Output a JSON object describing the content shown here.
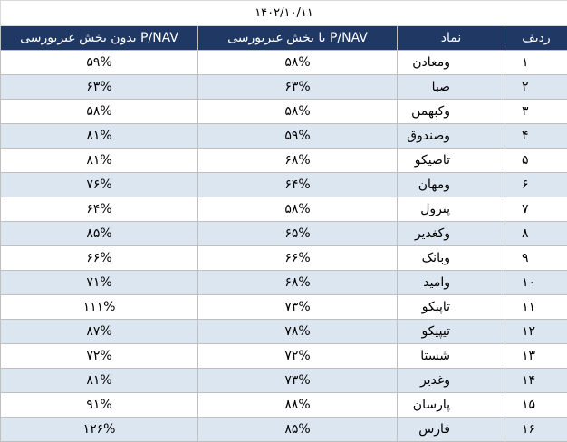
{
  "table": {
    "date": "۱۴۰۲/۱۰/۱۱",
    "headers": [
      "ردیف",
      "نماد",
      "P/NAV با بخش غیربورسی",
      "P/NAV بدون بخش غیربورسی"
    ],
    "rows": [
      [
        "۱",
        "ومعادن",
        "۵۸%",
        "۵۹%"
      ],
      [
        "۲",
        "صبا",
        "۶۳%",
        "۶۳%"
      ],
      [
        "۳",
        "وکبهمن",
        "۵۸%",
        "۵۸%"
      ],
      [
        "۴",
        "وصندوق",
        "۵۹%",
        "۸۱%"
      ],
      [
        "۵",
        "تاصیکو",
        "۶۸%",
        "۸۱%"
      ],
      [
        "۶",
        "ومهان",
        "۶۴%",
        "۷۶%"
      ],
      [
        "۷",
        "پترول",
        "۵۸%",
        "۶۴%"
      ],
      [
        "۸",
        "وکغدیر",
        "۶۵%",
        "۸۵%"
      ],
      [
        "۹",
        "وبانک",
        "۶۶%",
        "۶۶%"
      ],
      [
        "۱۰",
        "وامید",
        "۶۸%",
        "۷۱%"
      ],
      [
        "۱۱",
        "تاپیکو",
        "۷۳%",
        "۱۱۱%"
      ],
      [
        "۱۲",
        "تیپیکو",
        "۷۸%",
        "۸۷%"
      ],
      [
        "۱۳",
        "شستا",
        "۷۲%",
        "۷۲%"
      ],
      [
        "۱۴",
        "وغدیر",
        "۷۳%",
        "۸۱%"
      ],
      [
        "۱۵",
        "پارسان",
        "۸۸%",
        "۹۱%"
      ],
      [
        "۱۶",
        "فارس",
        "۸۵%",
        "۱۲۶%"
      ]
    ]
  }
}
